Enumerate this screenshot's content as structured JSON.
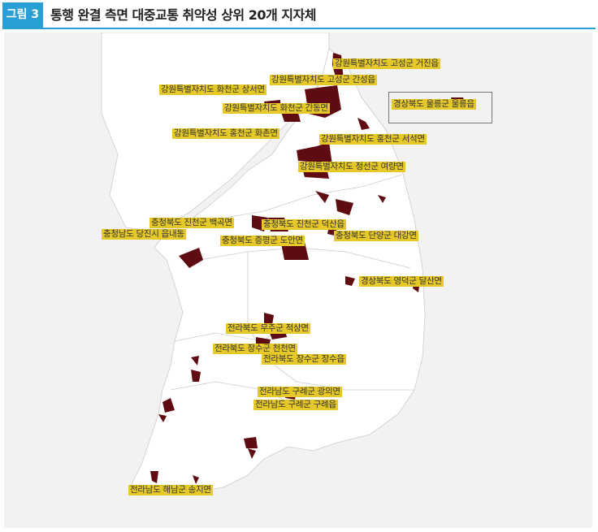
{
  "figure": {
    "badge": "그림 3",
    "title": "통행 완결 측면 대중교통 취약성 상위 20개 지자체"
  },
  "colors": {
    "accent": "#2a9fd6",
    "highlight": "#5e0c12",
    "label_bg": "#e6c928",
    "land": "#ffffff",
    "sea": "#f2f2f2"
  },
  "labels": [
    "강원특별자치도 고성군 거진읍",
    "강원특별자치도 고성군 간성읍",
    "강원특별자치도 화천군 상서면",
    "강원특별자치도 화천군 간동면",
    "경상북도 울릉군 울릉읍",
    "강원특별자치도 홍천군 화촌면",
    "강원특별자치도 홍천군 서석면",
    "강원특별자치도 정선군 여량면",
    "충청북도 진천군 백곡면",
    "충청북도 진천군 덕산읍",
    "충청남도 당진시 읍내동",
    "충청북도 단양군 대강면",
    "충청북도 증평군 도안면",
    "경상북도 영덕군 달산면",
    "전라북도 무주군 적상면",
    "전라북도 장수군 천천면",
    "전라북도 장수군 장수읍",
    "전라남도 구례군 광의면",
    "전라남도 구례군 구례읍",
    "전라남도 해남군 송지면"
  ]
}
